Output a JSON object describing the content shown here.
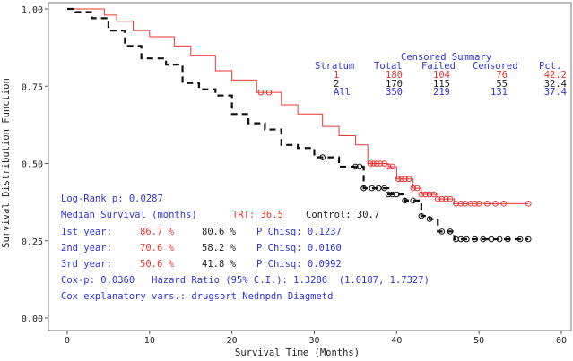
{
  "chart_data": {
    "type": "line",
    "xlabel": "Survival Time (Months)",
    "ylabel": "Survival Distribution Function",
    "xlim": [
      0,
      60
    ],
    "ylim": [
      0,
      1
    ],
    "xticks": [
      "0",
      "10",
      "20",
      "30",
      "40",
      "50",
      "60"
    ],
    "yticks": [
      "0.00",
      "0.25",
      "0.50",
      "0.75",
      "1.00"
    ],
    "series": [
      {
        "name": "1",
        "color": "#ee3333",
        "style": "solid",
        "steps": [
          [
            0,
            1
          ],
          [
            4.5,
            0.98
          ],
          [
            6,
            0.96
          ],
          [
            8,
            0.93
          ],
          [
            10,
            0.91
          ],
          [
            13,
            0.88
          ],
          [
            15,
            0.85
          ],
          [
            18,
            0.8
          ],
          [
            20,
            0.77
          ],
          [
            23,
            0.73
          ],
          [
            26,
            0.69
          ],
          [
            28,
            0.66
          ],
          [
            31,
            0.62
          ],
          [
            33,
            0.59
          ],
          [
            35,
            0.56
          ],
          [
            36.5,
            0.5
          ],
          [
            39,
            0.49
          ],
          [
            40,
            0.45
          ],
          [
            42,
            0.42
          ],
          [
            43,
            0.4
          ],
          [
            45,
            0.385
          ],
          [
            47,
            0.37
          ],
          [
            56,
            0.37
          ]
        ],
        "censored": [
          23.5,
          24.5,
          36.8,
          37.2,
          37.6,
          38,
          38.5,
          39,
          39.5,
          40.2,
          40.6,
          41,
          41.5,
          42,
          42.5,
          43,
          43.5,
          44,
          44.5,
          45,
          45.5,
          46,
          46.5,
          47.2,
          47.8,
          48.3,
          49,
          49.5,
          50,
          51,
          52,
          53,
          56
        ]
      },
      {
        "name": "2",
        "color": "#111111",
        "style": "dashed",
        "steps": [
          [
            0,
            1
          ],
          [
            1,
            0.99
          ],
          [
            3,
            0.97
          ],
          [
            5,
            0.93
          ],
          [
            7,
            0.88
          ],
          [
            9,
            0.84
          ],
          [
            12,
            0.82
          ],
          [
            14,
            0.76
          ],
          [
            16,
            0.74
          ],
          [
            18,
            0.72
          ],
          [
            20,
            0.66
          ],
          [
            22,
            0.63
          ],
          [
            24,
            0.61
          ],
          [
            26,
            0.56
          ],
          [
            28,
            0.55
          ],
          [
            30,
            0.52
          ],
          [
            33,
            0.49
          ],
          [
            36,
            0.42
          ],
          [
            39,
            0.4
          ],
          [
            41,
            0.38
          ],
          [
            43,
            0.33
          ],
          [
            44,
            0.32
          ],
          [
            45,
            0.28
          ],
          [
            47,
            0.255
          ],
          [
            56,
            0.255
          ]
        ],
        "censored": [
          31,
          35,
          35.5,
          36,
          37,
          37.8,
          38.5,
          39,
          39.5,
          40,
          41,
          42,
          43,
          44,
          45.5,
          46.5,
          47.2,
          47.8,
          48.5,
          49.5,
          50.5,
          51.5,
          52.5,
          53.5,
          55,
          56
        ]
      }
    ],
    "summary": {
      "title": "Censored Summary",
      "headers": [
        "Stratum",
        "Total",
        "Failed",
        "Censored",
        "Pct."
      ],
      "rows": [
        [
          "1",
          "180",
          "104",
          "76",
          "42.2"
        ],
        [
          "2",
          "170",
          "115",
          "55",
          "32.4"
        ],
        [
          "All",
          "350",
          "219",
          "131",
          "37.4"
        ]
      ]
    },
    "annotations": {
      "logrank": "Log-Rank p: 0.0287",
      "median_label": "Median Survival (months)",
      "median_trt": "TRT: 36.5",
      "median_ctl": "Control: 30.7",
      "years": [
        {
          "label": "1st year:",
          "trt": "86.7 %",
          "ctl": "80.6 %",
          "p": "P Chisq: 0.1237"
        },
        {
          "label": "2nd year:",
          "trt": "70.6 %",
          "ctl": "58.2 %",
          "p": "P Chisq: 0.0160"
        },
        {
          "label": "3rd year:",
          "trt": "50.6 %",
          "ctl": "41.8 %",
          "p": "P Chisq: 0.0992"
        }
      ],
      "cox": "Cox-p: 0.0360   Hazard Ratio (95% C.I.): 1.3286  (1.0187, 1.7327)",
      "coxvars": "Cox explanatory vars.: drugsort Nednpdn Diagmetd"
    }
  }
}
